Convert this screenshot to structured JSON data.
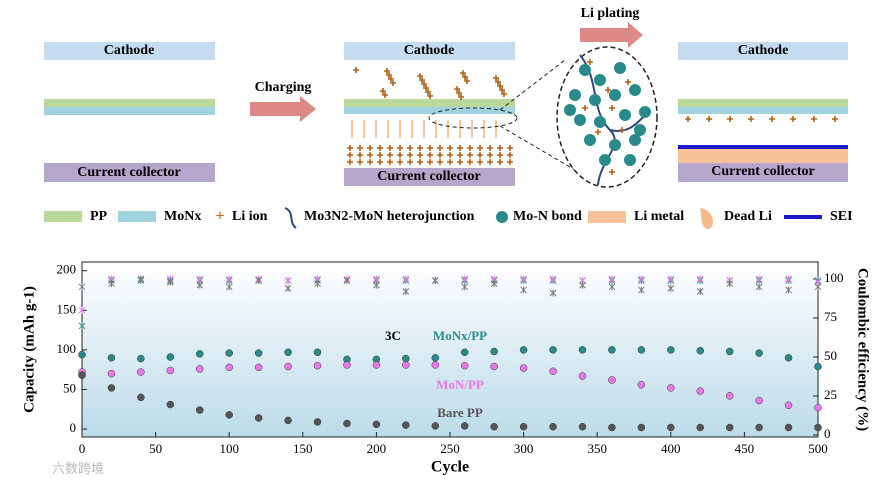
{
  "diagram": {
    "panels": [
      {
        "cathode": "Cathode",
        "collector": "Current collector"
      },
      {
        "cathode": "Cathode",
        "collector": "Current collector"
      },
      {
        "cathode": "Cathode",
        "collector": "Current collector"
      }
    ],
    "arrows": [
      "Charging",
      "Li plating"
    ],
    "legend": [
      "PP",
      "MoNx",
      "Li ion",
      "Mo3N2-MoN heterojunction",
      "Mo-N bond",
      "Li metal",
      "Dead Li",
      "SEI"
    ],
    "watermark": "六数跨境"
  },
  "chart_data": {
    "type": "scatter",
    "xlabel": "Cycle",
    "ylabel": "Capacity (mAh g-1)",
    "y2label": "Coulombic efficiency (%)",
    "annotations": [
      "3C"
    ],
    "x": [
      0,
      20,
      40,
      60,
      80,
      100,
      120,
      140,
      160,
      180,
      200,
      220,
      240,
      260,
      280,
      300,
      320,
      340,
      360,
      380,
      400,
      420,
      440,
      460,
      480,
      500
    ],
    "xlim": [
      0,
      500
    ],
    "xticks": [
      0,
      50,
      100,
      150,
      200,
      250,
      300,
      350,
      400,
      450,
      500
    ],
    "ylim": [
      -10,
      211
    ],
    "yticks": [
      0,
      50,
      100,
      150,
      200
    ],
    "y2lim": [
      -1.3,
      110.9
    ],
    "y2ticks": [
      0,
      25,
      50,
      75,
      100
    ],
    "series": [
      {
        "name": "MoNx/PP",
        "color": "#2a8a8a",
        "values": [
          94,
          90,
          89,
          91,
          95,
          96,
          96,
          97,
          97,
          88,
          88,
          89,
          90,
          97,
          98,
          100,
          100,
          100,
          100,
          100,
          100,
          99,
          98,
          96,
          90,
          79
        ]
      },
      {
        "name": "MoN/PP",
        "color": "#e878e8",
        "values": [
          72,
          70,
          72,
          74,
          76,
          78,
          78,
          79,
          80,
          81,
          81,
          81,
          81,
          80,
          79,
          77,
          73,
          67,
          62,
          56,
          52,
          48,
          42,
          36,
          30,
          27
        ]
      },
      {
        "name": "Bare PP",
        "color": "#555555",
        "values": [
          68,
          52,
          40,
          31,
          24,
          18,
          14,
          11,
          9,
          7,
          6,
          5,
          4,
          4,
          3,
          3,
          3,
          3,
          2,
          2,
          2,
          2,
          2,
          2,
          2,
          2
        ]
      },
      {
        "name": "MoNx/PP",
        "color": "#2a8a8a",
        "axis": "y2",
        "values": [
          70,
          99,
          99,
          99,
          99,
          99,
          99,
          99,
          99,
          99,
          99,
          99,
          99,
          99,
          99,
          99,
          99,
          99,
          99,
          99,
          99,
          99,
          99,
          99,
          99,
          99
        ]
      },
      {
        "name": "MoN/PP",
        "color": "#e878e8",
        "axis": "y2",
        "values": [
          80,
          100,
          100,
          100,
          100,
          100,
          100,
          99,
          100,
          100,
          100,
          100,
          99,
          100,
          100,
          100,
          100,
          99,
          100,
          100,
          100,
          100,
          99,
          100,
          100,
          98
        ]
      },
      {
        "name": "Bare PP",
        "color": "#777777",
        "axis": "y2",
        "values": [
          95,
          97,
          100,
          98,
          96,
          95,
          99,
          94,
          97,
          99,
          96,
          92,
          99,
          95,
          97,
          93,
          91,
          96,
          95,
          93,
          94,
          92,
          97,
          95,
          93,
          95
        ]
      }
    ]
  }
}
